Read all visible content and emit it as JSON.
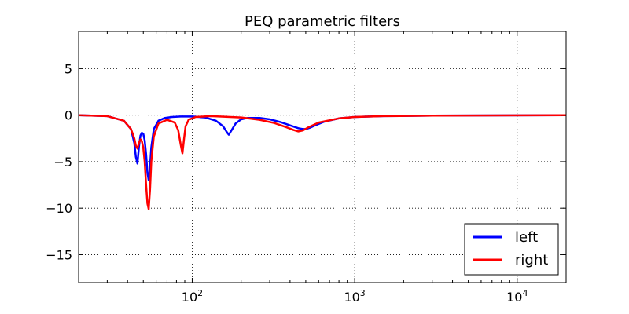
{
  "chart_data": {
    "type": "line",
    "title": "PEQ parametric filters",
    "xlabel": "",
    "ylabel": "",
    "xscale": "log",
    "xlim": [
      20,
      20000
    ],
    "ylim": [
      -18,
      9
    ],
    "grid": true,
    "legend_position": "lower-right",
    "xticks": [
      {
        "value": 100,
        "label_base": "10",
        "label_exp": "2"
      },
      {
        "value": 1000,
        "label_base": "10",
        "label_exp": "3"
      },
      {
        "value": 10000,
        "label_base": "10",
        "label_exp": "4"
      }
    ],
    "yticks": [
      {
        "value": 5,
        "label": "5"
      },
      {
        "value": 0,
        "label": "0"
      },
      {
        "value": -5,
        "label": "−5"
      },
      {
        "value": -10,
        "label": "−10"
      },
      {
        "value": -15,
        "label": "−15"
      }
    ],
    "series": [
      {
        "name": "left",
        "color": "#0000ff",
        "x": [
          20,
          30,
          38,
          42,
          44,
          45,
          46,
          47,
          48,
          49,
          50,
          51,
          52,
          53,
          54,
          55,
          56,
          58,
          62,
          68,
          75,
          85,
          100,
          120,
          140,
          155,
          163,
          168,
          175,
          185,
          200,
          220,
          260,
          300,
          350,
          400,
          450,
          480,
          500,
          530,
          570,
          650,
          800,
          1000,
          1500,
          3000,
          20000
        ],
        "y": [
          0,
          -0.1,
          -0.6,
          -1.5,
          -3.0,
          -4.5,
          -5.2,
          -3.4,
          -2.2,
          -1.9,
          -2.0,
          -2.7,
          -4.2,
          -6.2,
          -7.0,
          -5.5,
          -3.5,
          -1.5,
          -0.6,
          -0.3,
          -0.2,
          -0.15,
          -0.15,
          -0.25,
          -0.6,
          -1.2,
          -1.8,
          -2.1,
          -1.6,
          -0.9,
          -0.45,
          -0.3,
          -0.3,
          -0.45,
          -0.75,
          -1.1,
          -1.4,
          -1.5,
          -1.5,
          -1.35,
          -1.1,
          -0.7,
          -0.35,
          -0.2,
          -0.1,
          -0.05,
          0
        ]
      },
      {
        "name": "right",
        "color": "#ff0000",
        "x": [
          20,
          30,
          38,
          42,
          44,
          45,
          46,
          47,
          48,
          49,
          50,
          51,
          52,
          53,
          54,
          55,
          56,
          58,
          62,
          70,
          78,
          82,
          85,
          87,
          89,
          91,
          95,
          105,
          130,
          200,
          260,
          320,
          380,
          420,
          450,
          480,
          520,
          600,
          800,
          1000,
          1500,
          3000,
          20000
        ],
        "y": [
          0,
          -0.1,
          -0.6,
          -1.5,
          -2.5,
          -3.3,
          -3.6,
          -3.0,
          -2.6,
          -2.8,
          -3.5,
          -5.0,
          -7.5,
          -9.5,
          -10.1,
          -8.0,
          -5.0,
          -2.3,
          -0.9,
          -0.5,
          -0.8,
          -1.6,
          -3.2,
          -4.1,
          -2.6,
          -1.2,
          -0.5,
          -0.2,
          -0.1,
          -0.25,
          -0.5,
          -0.85,
          -1.3,
          -1.6,
          -1.75,
          -1.65,
          -1.3,
          -0.8,
          -0.35,
          -0.2,
          -0.1,
          -0.05,
          0
        ]
      }
    ]
  }
}
